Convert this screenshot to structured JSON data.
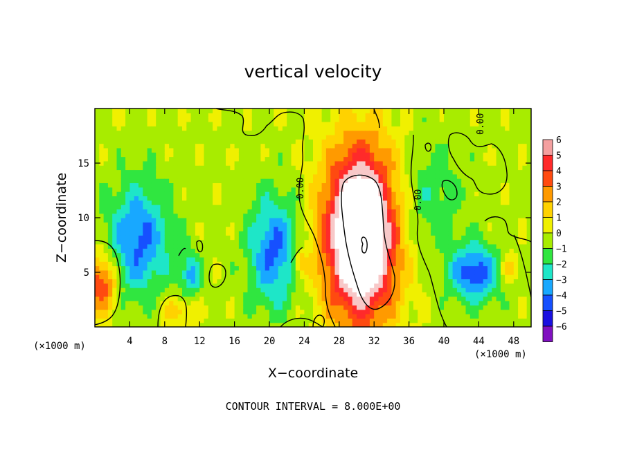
{
  "chart_data": {
    "type": "heatmap",
    "title": "vertical velocity",
    "xlabel": "X−coordinate",
    "ylabel": "Z−coordinate",
    "x_unit_label_left": "(×1000 m)",
    "x_unit_label_right": "(×1000 m)",
    "xlim": [
      0,
      50
    ],
    "ylim": [
      0,
      20
    ],
    "xticks": [
      4,
      8,
      12,
      16,
      20,
      24,
      28,
      32,
      36,
      40,
      44,
      48
    ],
    "yticks": [
      5,
      10,
      15
    ],
    "footer": "CONTOUR INTERVAL = 8.000E+00",
    "contour_labels": [
      "0.00",
      "0.00",
      "0.00"
    ],
    "colorbar": {
      "levels": [
        6,
        5,
        4,
        3,
        2,
        1,
        0,
        -1,
        -2,
        -3,
        -4,
        -5,
        -6
      ],
      "labels": [
        "6",
        "5",
        "4",
        "3",
        "2",
        "1",
        "0",
        "−1",
        "−2",
        "−3",
        "−4",
        "−5",
        "−6"
      ],
      "colors": [
        "#f4a0a0",
        "#ff2a2a",
        "#ff4a10",
        "#ff9a00",
        "#ffd200",
        "#f0f000",
        "#a8ec00",
        "#30e640",
        "#1ee6c8",
        "#18a8ff",
        "#1650ff",
        "#1a10e0",
        "#8010c0"
      ]
    },
    "features": [
      {
        "kind": "updraft",
        "x": 30.5,
        "z": 8.5,
        "sx": 4.2,
        "sz": 8.0,
        "w": 10.0
      },
      {
        "kind": "updraft",
        "x": 0.8,
        "z": 4.0,
        "sx": 1.8,
        "sz": 2.8,
        "w": 4.5
      },
      {
        "kind": "updraft",
        "x": 9.5,
        "z": 1.5,
        "sx": 2.2,
        "sz": 1.4,
        "w": 2.0
      },
      {
        "kind": "updraft",
        "x": 47.5,
        "z": 5.5,
        "sx": 1.0,
        "sz": 1.4,
        "w": 2.0
      },
      {
        "kind": "updraft",
        "x": 23.5,
        "z": 5.8,
        "sx": 0.8,
        "sz": 1.2,
        "w": 3.0
      },
      {
        "kind": "downdraft",
        "x": 5.0,
        "z": 8.0,
        "sx": 3.5,
        "sz": 5.0,
        "w": -4.0
      },
      {
        "kind": "downdraft",
        "x": 20.5,
        "z": 7.0,
        "sx": 2.8,
        "sz": 5.0,
        "w": -4.0
      },
      {
        "kind": "downdraft",
        "x": 43.5,
        "z": 5.0,
        "sx": 2.8,
        "sz": 2.5,
        "w": -4.5
      },
      {
        "kind": "downdraft",
        "x": 38.0,
        "z": 12.0,
        "sx": 4.0,
        "sz": 5.0,
        "w": -1.6
      },
      {
        "kind": "downdraft",
        "x": 11.0,
        "z": 4.8,
        "sx": 1.2,
        "sz": 2.0,
        "w": -3.0
      }
    ]
  }
}
